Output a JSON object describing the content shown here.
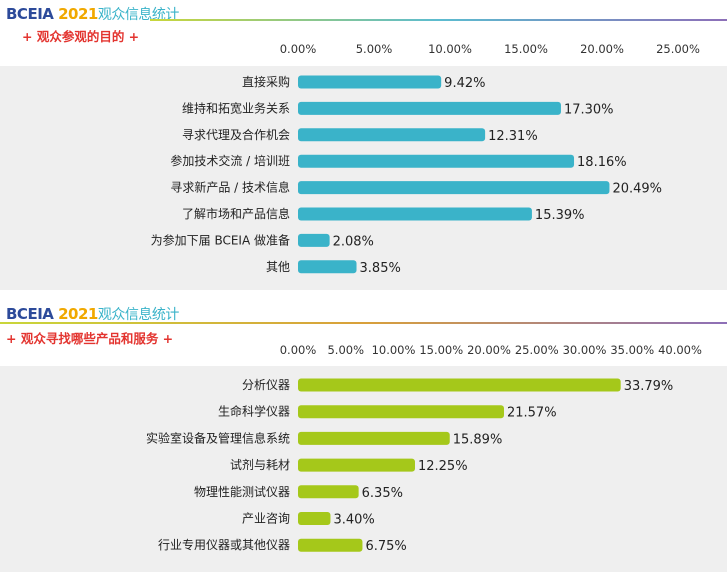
{
  "charts": [
    {
      "brand": {
        "part1": "BCEIA ",
        "year": "2021",
        "part3": "观众信息统计"
      },
      "subtitle": "+ 观众参观的目的 +",
      "colors": {
        "bar": "#3ab3c9",
        "subtitle": "#e3342f"
      }
    },
    {
      "brand": {
        "part1": "BCEIA ",
        "year": "2021",
        "part3": "观众信息统计"
      },
      "subtitle": "+ 观众寻找哪些产品和服务 +",
      "colors": {
        "bar": "#a5c81a",
        "subtitle": "#e3342f"
      }
    }
  ],
  "chart_data": [
    {
      "type": "bar",
      "orientation": "horizontal",
      "categories": [
        "直接采购",
        "维持和拓宽业务关系",
        "寻求代理及合作机会",
        "参加技术交流 / 培训班",
        "寻求新产品 / 技术信息",
        "了解市场和产品信息",
        "为参加下届 BCEIA 做准备",
        "其他"
      ],
      "values": [
        9.42,
        17.3,
        12.31,
        18.16,
        20.49,
        15.39,
        2.08,
        3.85
      ],
      "value_labels": [
        "9.42%",
        "17.30%",
        "12.31%",
        "18.16%",
        "20.49%",
        "15.39%",
        "2.08%",
        "3.85%"
      ],
      "xlim": [
        0,
        25
      ],
      "ticks": [
        "0.00%",
        "5.00%",
        "10.00%",
        "15.00%",
        "20.00%",
        "25.00%"
      ],
      "axis_position": "top",
      "grid": false,
      "bar_color": "#3ab3c9"
    },
    {
      "type": "bar",
      "orientation": "horizontal",
      "categories": [
        "分析仪器",
        "生命科学仪器",
        "实验室设备及管理信息系统",
        "试剂与耗材",
        "物理性能测试仪器",
        "产业咨询",
        "行业专用仪器或其他仪器"
      ],
      "values": [
        33.79,
        21.57,
        15.89,
        12.25,
        6.35,
        3.4,
        6.75
      ],
      "value_labels": [
        "33.79%",
        "21.57%",
        "15.89%",
        "12.25%",
        "6.35%",
        "3.40%",
        "6.75%"
      ],
      "xlim": [
        0,
        40
      ],
      "ticks": [
        "0.00%",
        "5.00%",
        "10.00%",
        "15.00%",
        "20.00%",
        "25.00%",
        "30.00%",
        "35.00%",
        "40.00%"
      ],
      "axis_position": "top",
      "grid": false,
      "bar_color": "#a5c81a"
    }
  ]
}
